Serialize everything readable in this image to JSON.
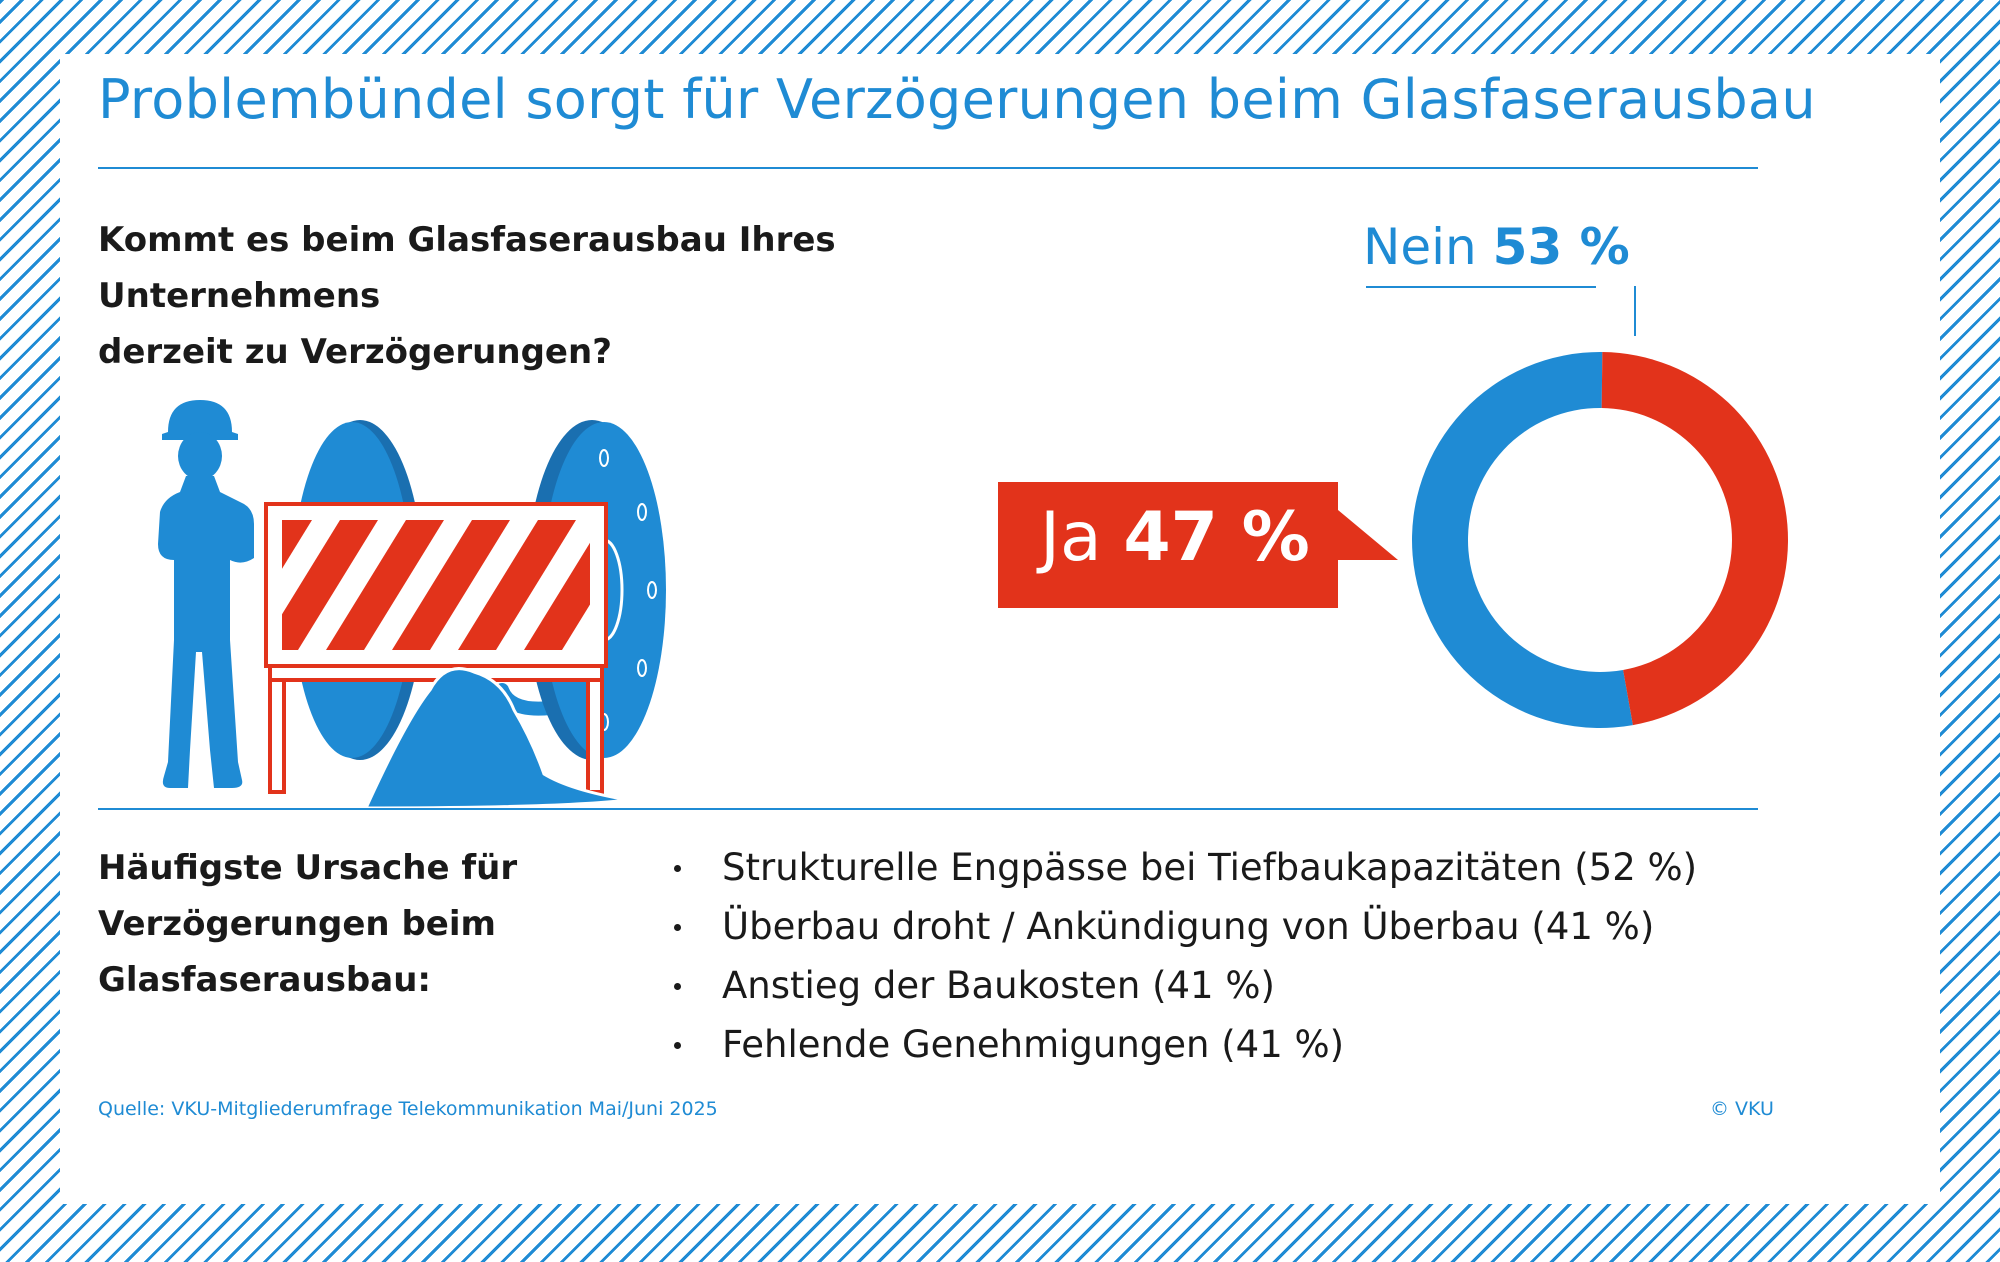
{
  "title": "Problembündel sorgt für Verzögerungen beim Glasfaserausbau",
  "question": {
    "line1": "Kommt es beim Glasfaserausbau Ihres Unternehmens",
    "line2": "derzeit zu Verzögerungen?"
  },
  "chart_data": {
    "type": "pie",
    "title": "",
    "series": [
      {
        "name": "Nein",
        "value": 53,
        "value_label": "53 %",
        "color": "#1f8bd4"
      },
      {
        "name": "Ja",
        "value": 47,
        "value_label": "47 %",
        "color": "#e2331b"
      }
    ]
  },
  "causes": {
    "heading_lines": [
      "Häufigste Ursache für",
      "Verzögerungen beim",
      "Glasfaserausbau:"
    ],
    "items": [
      "Strukturelle Engpässe bei Tiefbaukapazitäten (52 %)",
      "Überbau droht / Ankündigung von Überbau (41 %)",
      "Anstieg der Baukosten (41 %)",
      "Fehlende Genehmigungen (41 %)"
    ]
  },
  "footer": {
    "source": "Quelle: VKU-Mitgliederumfrage Telekommunikation Mai/Juni 2025",
    "copyright": "© VKU"
  },
  "colors": {
    "blue": "#1f8bd4",
    "red": "#e2331b",
    "dark_blue": "#1a6fb0"
  },
  "icons": [
    "construction-worker-icon",
    "barrier-icon",
    "cable-drum-icon",
    "soil-pile-icon"
  ]
}
